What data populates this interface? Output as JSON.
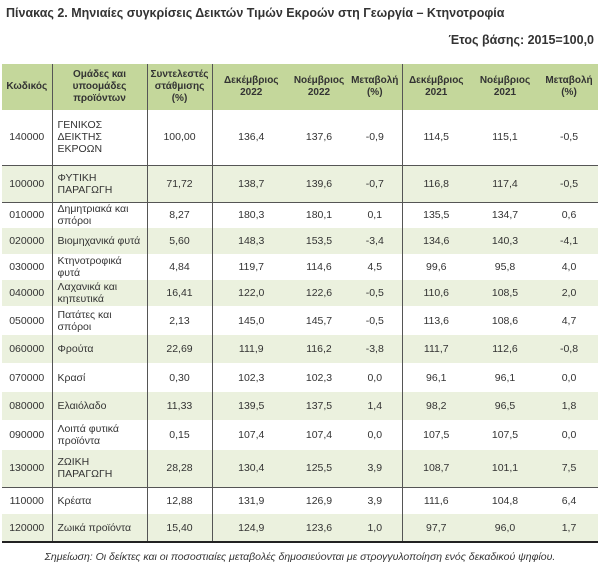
{
  "title": "Πίνακας 2. Μηνιαίες συγκρίσεις Δεικτών Τιμών Εκροών στη Γεωργία – Κτηνοτροφία",
  "base_year": "Έτος βάσης: 2015=100,0",
  "headers": [
    "Κωδικός",
    "Ομάδες και υποομάδες προϊόντων",
    "Συντελεστές στάθμισης (%)",
    "Δεκέμβριος 2022",
    "Νοέμβριος 2022",
    "Μεταβολή (%)",
    "Δεκέμβριος 2021",
    "Νοέμβριος 2021",
    "Μεταβολή (%)"
  ],
  "header_color": "#c4d79b",
  "stripe_color": "#ebf1de",
  "rows": [
    [
      "140000",
      "ΓΕΝΙΚΟΣ ΔΕΙΚΤΗΣ ΕΚΡΟΩΝ",
      "100,00",
      "136,4",
      "137,6",
      "-0,9",
      "114,5",
      "115,1",
      "-0,5"
    ],
    [
      "100000",
      "ΦΥΤΙΚΗ ΠΑΡΑΓΩΓΗ",
      "71,72",
      "138,7",
      "139,6",
      "-0,7",
      "116,8",
      "117,4",
      "-0,5"
    ],
    [
      "010000",
      "Δημητριακά και σπόροι",
      "8,27",
      "180,3",
      "180,1",
      "0,1",
      "135,5",
      "134,7",
      "0,6"
    ],
    [
      "020000",
      "Βιομηχανικά φυτά",
      "5,60",
      "148,3",
      "153,5",
      "-3,4",
      "134,6",
      "140,3",
      "-4,1"
    ],
    [
      "030000",
      "Κτηνοτροφικά φυτά",
      "4,84",
      "119,7",
      "114,6",
      "4,5",
      "99,6",
      "95,8",
      "4,0"
    ],
    [
      "040000",
      "Λαχανικά και κηπευτικά",
      "16,41",
      "122,0",
      "122,6",
      "-0,5",
      "110,6",
      "108,5",
      "2,0"
    ],
    [
      "050000",
      "Πατάτες και σπόροι",
      "2,13",
      "145,0",
      "145,7",
      "-0,5",
      "113,6",
      "108,6",
      "4,7"
    ],
    [
      "060000",
      "Φρούτα",
      "22,69",
      "111,9",
      "116,2",
      "-3,8",
      "111,7",
      "112,6",
      "-0,8"
    ],
    [
      "070000",
      "Κρασί",
      "0,30",
      "102,3",
      "102,3",
      "0,0",
      "96,1",
      "96,1",
      "0,0"
    ],
    [
      "080000",
      "Ελαιόλαδο",
      "11,33",
      "139,5",
      "137,5",
      "1,4",
      "98,2",
      "96,5",
      "1,8"
    ],
    [
      "090000",
      "Λοιπά φυτικά προϊόντα",
      "0,15",
      "107,4",
      "107,4",
      "0,0",
      "107,5",
      "107,5",
      "0,0"
    ],
    [
      "130000",
      "ΖΩΙΚΗ ΠΑΡΑΓΩΓΗ",
      "28,28",
      "130,4",
      "125,5",
      "3,9",
      "108,7",
      "101,1",
      "7,5"
    ],
    [
      "110000",
      "Κρέατα",
      "12,88",
      "131,9",
      "126,9",
      "3,9",
      "111,6",
      "104,8",
      "6,4"
    ],
    [
      "120000",
      "Ζωικά προϊόντα",
      "15,40",
      "124,9",
      "123,6",
      "1,0",
      "97,7",
      "96,0",
      "1,7"
    ]
  ],
  "note": "Σημείωση: Οι δείκτες και οι ποσοστιαίες μεταβολές δημοσιεύονται με στρογγυλοποίηση ενός δεκαδικού ψηφίου."
}
